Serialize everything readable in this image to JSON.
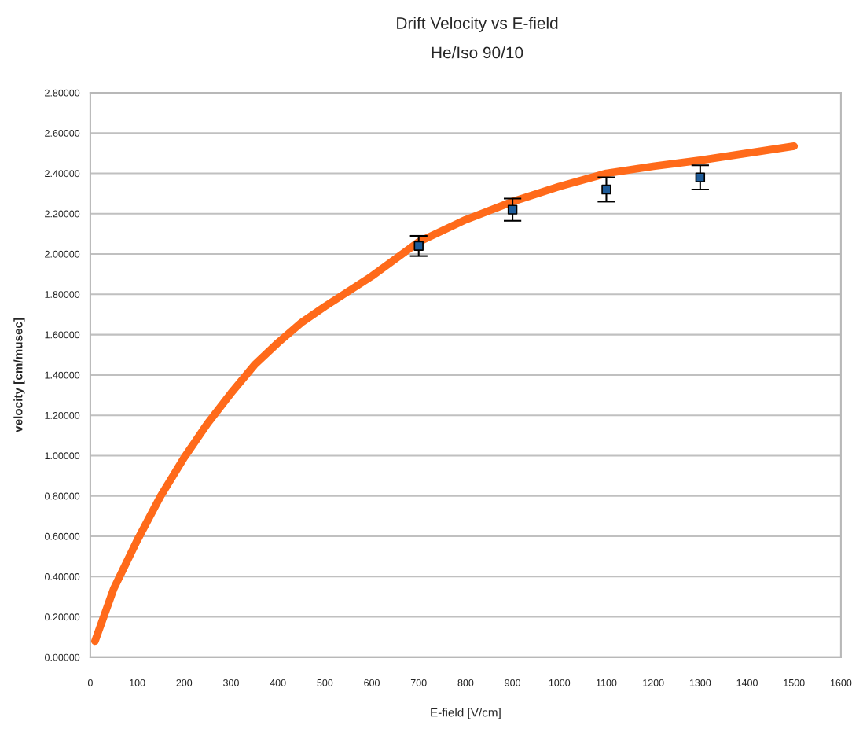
{
  "chart_data": {
    "type": "line",
    "title": "Drift Velocity vs E-field",
    "subtitle": "He/Iso 90/10",
    "xlabel": "E-field [V/cm]",
    "ylabel": "velocity [cm/musec]",
    "xlim": [
      0,
      1600
    ],
    "xticks": [
      0,
      100,
      200,
      300,
      400,
      500,
      600,
      700,
      800,
      900,
      1000,
      1100,
      1200,
      1300,
      1400,
      1500,
      1600
    ],
    "ylim": [
      0,
      2.8
    ],
    "yticks": [
      {
        "value": 0,
        "label": "0.00000"
      },
      {
        "value": 0.2,
        "label": "0.20000"
      },
      {
        "value": 0.4,
        "label": "0.40000"
      },
      {
        "value": 0.6,
        "label": "0.60000"
      },
      {
        "value": 0.8,
        "label": "0.80000"
      },
      {
        "value": 1.0,
        "label": "1.00000"
      },
      {
        "value": 1.2,
        "label": "1.20000"
      },
      {
        "value": 1.4,
        "label": "1.40000"
      },
      {
        "value": 1.6,
        "label": "1.60000"
      },
      {
        "value": 1.8,
        "label": "1.80000"
      },
      {
        "value": 2.0,
        "label": "2.00000"
      },
      {
        "value": 2.2,
        "label": "2.20000"
      },
      {
        "value": 2.4,
        "label": "2.40000"
      },
      {
        "value": 2.6,
        "label": "2.60000"
      },
      {
        "value": 2.8,
        "label": "2.80000"
      }
    ],
    "grid": "y",
    "series": [
      {
        "color": "#ff6a1a",
        "marker": "none",
        "line_style": "solid",
        "x": [
          10,
          50,
          100,
          150,
          200,
          250,
          300,
          350,
          400,
          450,
          500,
          600,
          700,
          800,
          900,
          1000,
          1100,
          1200,
          1300,
          1400,
          1500
        ],
        "values": [
          0.08,
          0.34,
          0.58,
          0.8,
          0.99,
          1.16,
          1.31,
          1.45,
          1.56,
          1.66,
          1.74,
          1.89,
          2.06,
          2.17,
          2.26,
          2.335,
          2.4,
          2.435,
          2.465,
          2.5,
          2.535
        ]
      },
      {
        "type": "scatter",
        "color": "#1f5c99",
        "marker": "square",
        "x": [
          700,
          900,
          1100,
          1300
        ],
        "values": [
          2.04,
          2.22,
          2.32,
          2.38
        ],
        "errors": [
          0.05,
          0.055,
          0.06,
          0.06
        ]
      }
    ]
  }
}
